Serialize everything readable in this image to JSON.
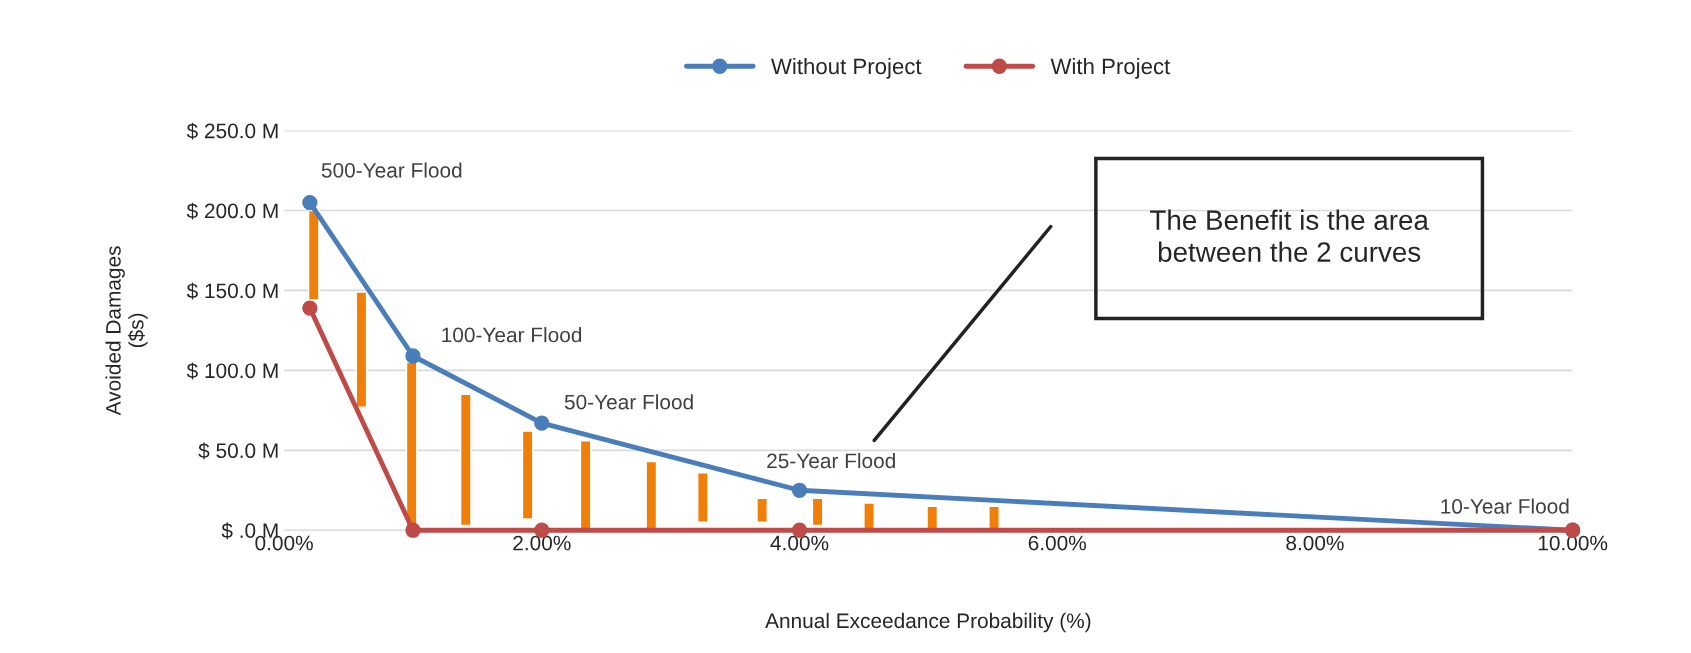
{
  "chart_data": {
    "type": "line",
    "xlabel": "Annual Exceedance Probability (%)",
    "ylabel": "Avoided Damages\n($s)",
    "xlim": [
      0,
      10
    ],
    "ylim": [
      0,
      250
    ],
    "xticks": [
      {
        "value": 0,
        "label": "0.00%"
      },
      {
        "value": 2,
        "label": "2.00%"
      },
      {
        "value": 4,
        "label": "4.00%"
      },
      {
        "value": 6,
        "label": "6.00%"
      },
      {
        "value": 8,
        "label": "8.00%"
      },
      {
        "value": 10,
        "label": "10.00%"
      }
    ],
    "yticks": [
      {
        "value": 0,
        "label": "$ .0 M"
      },
      {
        "value": 50,
        "label": "$ 50.0 M"
      },
      {
        "value": 100,
        "label": "$ 100.0 M"
      },
      {
        "value": 150,
        "label": "$ 150.0 M"
      },
      {
        "value": 200,
        "label": "$ 200.0 M"
      },
      {
        "value": 250,
        "label": "$ 250.0 M"
      }
    ],
    "grid": "y",
    "legend": "top",
    "marker": "circle",
    "line_style": "solid",
    "series": [
      {
        "type": "bar",
        "color": "#f07f09",
        "x": [
          0.23,
          0.6,
          0.99,
          1.41,
          1.89,
          2.34,
          2.85,
          3.25,
          3.71,
          4.14,
          4.54,
          5.03,
          5.51
        ],
        "base": [
          144,
          77,
          0,
          3,
          7,
          0,
          0,
          5,
          5,
          3,
          0,
          0,
          0
        ],
        "values": [
          56,
          72,
          105,
          82,
          55,
          56,
          43,
          31,
          15,
          17,
          17,
          15,
          15
        ]
      },
      {
        "name": "Without Project",
        "color": "#4a7ebb",
        "x": [
          0.2,
          1.0,
          2.0,
          4.0,
          10.0
        ],
        "values": [
          205,
          109,
          67,
          25,
          0
        ]
      },
      {
        "name": "With Project",
        "color": "#be4b48",
        "x": [
          0.2,
          1.0,
          2.0,
          4.0,
          10.0
        ],
        "values": [
          139,
          0,
          0,
          0,
          0
        ]
      }
    ],
    "annotations": [
      {
        "text": "500-Year Flood",
        "x": 0.2,
        "y": 205
      },
      {
        "text": "100-Year Flood",
        "x": 1.0,
        "y": 109
      },
      {
        "text": "50-Year Flood",
        "x": 2.0,
        "y": 67
      },
      {
        "text": "25-Year Flood",
        "x": 4.0,
        "y": 25
      },
      {
        "text": "10-Year Flood",
        "x": 10.0,
        "y": 0
      },
      "The Benefit is the area\nbetween the 2 curves"
    ]
  }
}
